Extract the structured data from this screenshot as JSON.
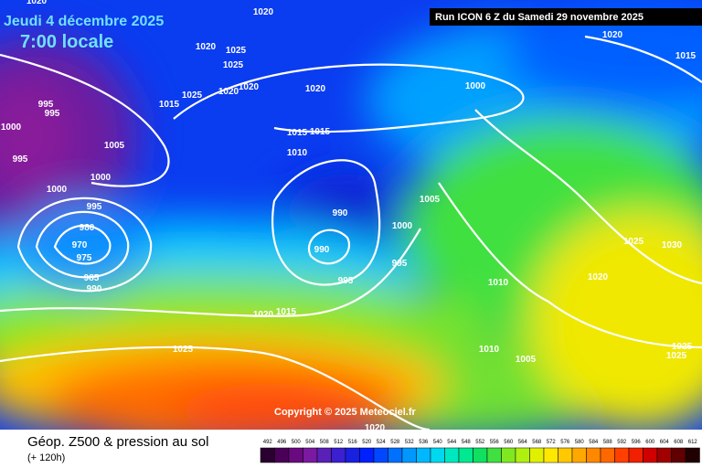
{
  "header": {
    "date": "Jeudi 4 décembre 2025",
    "time": "7:00 locale",
    "run": "Run ICON 6 Z du Samedi 29 novembre 2025",
    "copyright": "Copyright © 2025 Meteociel.fr"
  },
  "caption": {
    "title": "Géop. Z500 & pression au sol",
    "lead": "(+ 120h)"
  },
  "isobar_labels": [
    "1020",
    "1020",
    "1015",
    "1020",
    "1020",
    "1025",
    "1025",
    "1020",
    "1020",
    "1025",
    "1015",
    "1020",
    "1000",
    "995",
    "995",
    "1000",
    "1005",
    "1015",
    "1015",
    "1010",
    "995",
    "1000",
    "1000",
    "995",
    "990",
    "1005",
    "1000",
    "980",
    "970",
    "975",
    "990",
    "995",
    "995",
    "985",
    "990",
    "1010",
    "1025",
    "1030",
    "1020",
    "1020",
    "1015",
    "1025",
    "1010",
    "1005",
    "1025",
    "1025",
    "1020"
  ],
  "legend": {
    "values": [
      492,
      496,
      500,
      504,
      508,
      512,
      516,
      520,
      524,
      528,
      532,
      536,
      540,
      544,
      548,
      552,
      556,
      560,
      564,
      568,
      572,
      576,
      580,
      584,
      588,
      592,
      596,
      600,
      604,
      608,
      612
    ],
    "colors": [
      "#2a0030",
      "#4a0058",
      "#6a0a80",
      "#7a1aa0",
      "#5a20b8",
      "#3a20d0",
      "#1a20e0",
      "#0020ff",
      "#0048ff",
      "#0070ff",
      "#0098ff",
      "#00b8ff",
      "#00d8f0",
      "#00e8c0",
      "#00e890",
      "#10e060",
      "#40e040",
      "#80e820",
      "#b0f010",
      "#e0f000",
      "#ffe800",
      "#ffc800",
      "#ffa800",
      "#ff8800",
      "#ff6800",
      "#ff4000",
      "#f02000",
      "#d00000",
      "#a00000",
      "#600000",
      "#200000"
    ]
  }
}
